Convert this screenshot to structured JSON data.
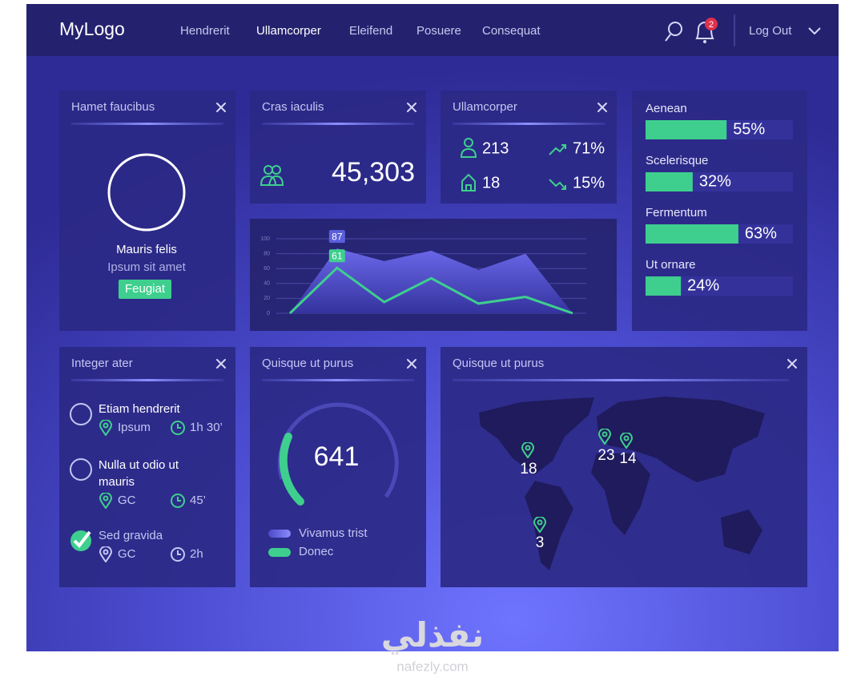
{
  "header": {
    "logo": "MyLogo",
    "nav": [
      "Hendrerit",
      "Ullamcorper",
      "Eleifend",
      "Posuere",
      "Consequat"
    ],
    "notifications": "2",
    "logout": "Log Out"
  },
  "profile": {
    "title": "Hamet faucibus",
    "name": "Mauris felis",
    "subtitle": "Ipsum sit amet",
    "button": "Feugiat"
  },
  "counter": {
    "title": "Cras iaculis",
    "value": "45,303"
  },
  "stats": {
    "title": "Ullamcorper",
    "users": "213",
    "homes": "18",
    "up": "71%",
    "down": "15%"
  },
  "chart_data": [
    {
      "type": "bar",
      "orientation": "horizontal",
      "categories": [
        "Aenean",
        "Scelerisque",
        "Fermentum",
        "Ut ornare"
      ],
      "values": [
        55,
        32,
        63,
        24
      ],
      "value_labels": [
        "55%",
        "32%",
        "63%",
        "24%"
      ],
      "color": "#3ecf8e",
      "xlim": [
        0,
        100
      ]
    },
    {
      "type": "line",
      "categories": [
        null,
        null,
        null,
        null,
        null,
        null,
        null
      ],
      "series": [
        {
          "color": "#6461e0",
          "fill": true,
          "values": [
            0,
            87,
            70,
            84,
            58,
            80,
            0
          ],
          "value_labels": [
            null,
            "87",
            null,
            null,
            null,
            null,
            null
          ]
        },
        {
          "color": "#3ecf8e",
          "values": [
            0,
            61,
            15,
            47,
            13,
            22,
            0
          ],
          "value_labels": [
            null,
            "61",
            null,
            null,
            null,
            null,
            null
          ]
        }
      ],
      "ylim": [
        0,
        100
      ],
      "yticks": [
        0,
        20,
        40,
        60,
        80,
        100
      ],
      "grid": true
    }
  ],
  "todo": {
    "title": "Integer ater",
    "items": [
      {
        "title": "Etiam hendrerit",
        "place": "Ipsum",
        "time": "1h 30’"
      },
      {
        "title": "Nulla ut odio ut mauris",
        "place": "GC",
        "time": "45’"
      },
      {
        "title": "Sed gravida",
        "place": "GC",
        "time": "2h"
      }
    ]
  },
  "gauge": {
    "title": "Quisque ut purus",
    "value": "641",
    "legend": [
      "Vivamus trist",
      "Donec"
    ]
  },
  "map": {
    "title": "Quisque ut purus",
    "markers": [
      "18",
      "23",
      "14",
      "3"
    ]
  },
  "watermark": {
    "arabic": "نفذلي",
    "latin": "nafezly.com"
  }
}
